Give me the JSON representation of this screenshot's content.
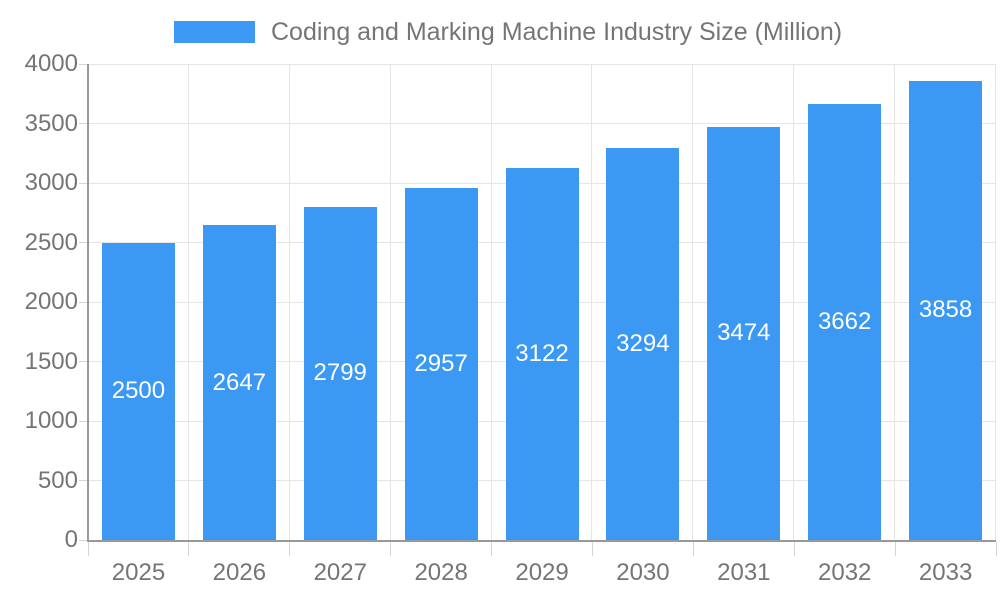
{
  "chart_data": {
    "type": "bar",
    "title": "Coding and Marking Machine Industry Size (Million)",
    "series_name": "Coding and Marking Machine Industry Size (Million)",
    "categories": [
      "2025",
      "2026",
      "2027",
      "2028",
      "2029",
      "2030",
      "2031",
      "2032",
      "2033"
    ],
    "values": [
      2500,
      2647,
      2799,
      2957,
      3122,
      3294,
      3474,
      3662,
      3858
    ],
    "xlabel": "",
    "ylabel": "",
    "ylim": [
      0,
      4000
    ],
    "yticks": [
      0,
      500,
      1000,
      1500,
      2000,
      2500,
      3000,
      3500,
      4000
    ],
    "grid": true,
    "legend_position": "top",
    "value_labels_position": "inside-center",
    "colors": {
      "bar": "#3b98f3",
      "bar_label_text": "#ffffff",
      "axis_text": "#757575",
      "title_text": "#757575",
      "grid_line": "#e5e5e5",
      "axis_line": "#999999",
      "tick_line": "#d4d4d4",
      "background": "#ffffff"
    }
  }
}
